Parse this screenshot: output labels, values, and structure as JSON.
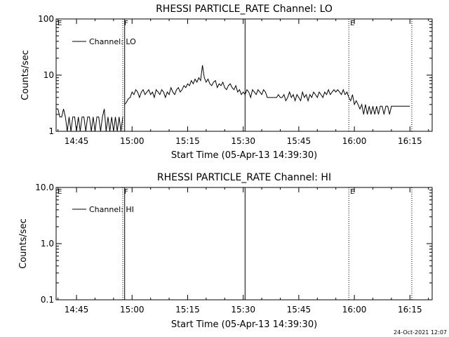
{
  "footer": {
    "timestamp": "24-Oct-2021 12:07"
  },
  "colors": {
    "background": "#ffffff",
    "ink": "#000000"
  },
  "chart_data": [
    {
      "type": "line",
      "title": "RHESSI PARTICLE_RATE Channel: LO",
      "xlabel": "Start Time (05-Apr-13 14:39:30)",
      "ylabel": "Counts/sec",
      "yscale": "log",
      "ylim": [
        1,
        100
      ],
      "ytick_values": [
        1,
        10,
        100
      ],
      "ytick_labels": [
        "1",
        "10",
        "100"
      ],
      "xlim": [
        "14:39:30",
        "16:21:00"
      ],
      "xtick_values": [
        "14:45",
        "15:00",
        "15:15",
        "15:30",
        "15:45",
        "16:00",
        "16:15"
      ],
      "xtick_labels": [
        "14:45",
        "15:00",
        "15:15",
        "15:30",
        "15:45",
        "16:00",
        "16:15"
      ],
      "legend": {
        "position": "top-left",
        "entries": [
          "Channel: LO"
        ]
      },
      "markers": [
        {
          "time": "14:39:30",
          "label": "E",
          "style": "dotted"
        },
        {
          "time": "14:57:30",
          "label": "F",
          "style": "dotted"
        },
        {
          "time": "14:58:00",
          "label": "",
          "style": "solid"
        },
        {
          "time": "15:30:30",
          "label": "",
          "style": "solid"
        },
        {
          "time": "15:58:30",
          "label": "E",
          "style": "dotted"
        },
        {
          "time": "16:15:30",
          "label": "",
          "style": "dotted"
        }
      ],
      "series": [
        {
          "name": "Channel: LO",
          "segments": [
            [
              [
                "14:39:30",
                2.5
              ],
              [
                "14:40:00",
                2.5
              ],
              [
                "14:40:30",
                1.8
              ],
              [
                "14:41:00",
                1.8
              ],
              [
                "14:41:30",
                2.5
              ],
              [
                "14:42:00",
                1.8
              ],
              [
                "14:42:30",
                1.0
              ],
              [
                "14:43:00",
                1.8
              ],
              [
                "14:43:30",
                1.0
              ],
              [
                "14:44:00",
                1.8
              ],
              [
                "14:44:30",
                1.8
              ],
              [
                "14:45:00",
                1.0
              ],
              [
                "14:45:30",
                1.8
              ],
              [
                "14:46:00",
                1.0
              ],
              [
                "14:46:30",
                1.8
              ],
              [
                "14:47:00",
                1.8
              ],
              [
                "14:47:30",
                1.0
              ],
              [
                "14:48:00",
                1.8
              ],
              [
                "14:48:30",
                1.8
              ],
              [
                "14:49:00",
                1.0
              ],
              [
                "14:49:30",
                1.8
              ],
              [
                "14:50:00",
                1.0
              ],
              [
                "14:50:30",
                1.8
              ],
              [
                "14:51:00",
                1.8
              ],
              [
                "14:51:30",
                1.0
              ],
              [
                "14:52:00",
                1.8
              ],
              [
                "14:52:30",
                2.5
              ],
              [
                "14:53:00",
                1.0
              ],
              [
                "14:53:30",
                1.8
              ],
              [
                "14:54:00",
                1.0
              ],
              [
                "14:54:30",
                1.8
              ],
              [
                "14:55:00",
                1.0
              ],
              [
                "14:55:30",
                1.8
              ],
              [
                "14:56:00",
                1.0
              ],
              [
                "14:56:30",
                1.8
              ],
              [
                "14:57:00",
                1.0
              ],
              [
                "14:57:30",
                1.8
              ]
            ],
            [
              [
                "14:58:00",
                3.0
              ],
              [
                "14:58:30",
                3.3
              ],
              [
                "14:59:00",
                3.8
              ],
              [
                "14:59:30",
                4.0
              ],
              [
                "15:00:00",
                5.0
              ],
              [
                "15:00:30",
                4.5
              ],
              [
                "15:01:00",
                5.5
              ],
              [
                "15:01:30",
                5.0
              ],
              [
                "15:02:00",
                4.0
              ],
              [
                "15:02:30",
                5.0
              ],
              [
                "15:03:00",
                5.5
              ],
              [
                "15:03:30",
                4.5
              ],
              [
                "15:04:00",
                5.0
              ],
              [
                "15:04:30",
                5.5
              ],
              [
                "15:05:00",
                4.5
              ],
              [
                "15:05:30",
                5.0
              ],
              [
                "15:06:00",
                4.0
              ],
              [
                "15:06:30",
                5.5
              ],
              [
                "15:07:00",
                5.0
              ],
              [
                "15:07:30",
                4.5
              ],
              [
                "15:08:00",
                5.5
              ],
              [
                "15:08:30",
                5.0
              ],
              [
                "15:09:00",
                4.0
              ],
              [
                "15:09:30",
                5.0
              ],
              [
                "15:10:00",
                4.5
              ],
              [
                "15:10:30",
                6.0
              ],
              [
                "15:11:00",
                5.0
              ],
              [
                "15:11:30",
                4.5
              ],
              [
                "15:12:00",
                5.5
              ],
              [
                "15:12:30",
                6.0
              ],
              [
                "15:13:00",
                5.0
              ],
              [
                "15:13:30",
                5.5
              ],
              [
                "15:14:00",
                6.5
              ],
              [
                "15:14:30",
                6.0
              ],
              [
                "15:15:00",
                7.0
              ],
              [
                "15:15:30",
                6.5
              ],
              [
                "15:16:00",
                8.0
              ],
              [
                "15:16:30",
                7.0
              ],
              [
                "15:17:00",
                8.5
              ],
              [
                "15:17:30",
                7.5
              ],
              [
                "15:18:00",
                9.0
              ],
              [
                "15:18:30",
                8.0
              ],
              [
                "15:19:00",
                15.0
              ],
              [
                "15:19:30",
                9.0
              ],
              [
                "15:20:00",
                7.5
              ],
              [
                "15:20:30",
                8.5
              ],
              [
                "15:21:00",
                7.0
              ],
              [
                "15:21:30",
                6.5
              ],
              [
                "15:22:00",
                7.5
              ],
              [
                "15:22:30",
                8.0
              ],
              [
                "15:23:00",
                6.0
              ],
              [
                "15:23:30",
                7.0
              ],
              [
                "15:24:00",
                6.5
              ],
              [
                "15:24:30",
                7.5
              ],
              [
                "15:25:00",
                6.0
              ],
              [
                "15:25:30",
                5.5
              ],
              [
                "15:26:00",
                6.5
              ],
              [
                "15:26:30",
                7.0
              ],
              [
                "15:27:00",
                6.0
              ],
              [
                "15:27:30",
                5.5
              ],
              [
                "15:28:00",
                6.5
              ],
              [
                "15:28:30",
                5.0
              ],
              [
                "15:29:00",
                5.5
              ],
              [
                "15:29:30",
                4.5
              ],
              [
                "15:30:00",
                5.0
              ],
              [
                "15:30:30",
                4.5
              ],
              [
                "15:31:00",
                5.5
              ],
              [
                "15:31:30",
                5.0
              ],
              [
                "15:32:00",
                4.0
              ],
              [
                "15:32:30",
                5.5
              ],
              [
                "15:33:00",
                5.0
              ],
              [
                "15:33:30",
                4.5
              ],
              [
                "15:34:00",
                5.5
              ],
              [
                "15:34:30",
                5.0
              ],
              [
                "15:35:00",
                4.5
              ],
              [
                "15:35:30",
                5.5
              ],
              [
                "15:36:00",
                5.0
              ],
              [
                "15:36:30",
                4.0
              ],
              [
                "15:37:00",
                4.0
              ],
              [
                "15:37:30",
                4.0
              ],
              [
                "15:38:00",
                4.0
              ],
              [
                "15:38:30",
                4.0
              ],
              [
                "15:39:00",
                4.0
              ],
              [
                "15:39:30",
                4.5
              ],
              [
                "15:40:00",
                4.0
              ],
              [
                "15:40:30",
                4.0
              ],
              [
                "15:41:00",
                4.5
              ],
              [
                "15:41:30",
                3.5
              ],
              [
                "15:42:00",
                4.0
              ],
              [
                "15:42:30",
                5.0
              ],
              [
                "15:43:00",
                4.0
              ],
              [
                "15:43:30",
                4.5
              ],
              [
                "15:44:00",
                3.5
              ],
              [
                "15:44:30",
                4.5
              ],
              [
                "15:45:00",
                4.0
              ],
              [
                "15:45:30",
                3.5
              ],
              [
                "15:46:00",
                5.0
              ],
              [
                "15:46:30",
                4.0
              ],
              [
                "15:47:00",
                4.5
              ],
              [
                "15:47:30",
                3.5
              ],
              [
                "15:48:00",
                4.5
              ],
              [
                "15:48:30",
                4.0
              ],
              [
                "15:49:00",
                5.0
              ],
              [
                "15:49:30",
                4.5
              ],
              [
                "15:50:00",
                4.0
              ],
              [
                "15:50:30",
                5.0
              ],
              [
                "15:51:00",
                4.5
              ],
              [
                "15:51:30",
                4.0
              ],
              [
                "15:52:00",
                5.0
              ],
              [
                "15:52:30",
                4.5
              ],
              [
                "15:53:00",
                5.5
              ],
              [
                "15:53:30",
                4.5
              ],
              [
                "15:54:00",
                5.0
              ],
              [
                "15:54:30",
                5.5
              ],
              [
                "15:55:00",
                5.0
              ],
              [
                "15:55:30",
                5.5
              ],
              [
                "15:56:00",
                5.0
              ],
              [
                "15:56:30",
                4.5
              ],
              [
                "15:57:00",
                5.5
              ],
              [
                "15:57:30",
                4.5
              ],
              [
                "15:58:00",
                5.0
              ],
              [
                "15:58:30",
                4.0
              ],
              [
                "15:59:00",
                3.5
              ],
              [
                "15:59:30",
                4.5
              ],
              [
                "16:00:00",
                3.0
              ],
              [
                "16:00:30",
                3.5
              ],
              [
                "16:01:00",
                3.0
              ],
              [
                "16:01:30",
                2.5
              ],
              [
                "16:02:00",
                3.0
              ],
              [
                "16:02:30",
                2.0
              ],
              [
                "16:03:00",
                3.0
              ],
              [
                "16:03:30",
                2.0
              ],
              [
                "16:04:00",
                2.8
              ],
              [
                "16:04:30",
                2.0
              ],
              [
                "16:05:00",
                2.8
              ],
              [
                "16:05:30",
                2.0
              ],
              [
                "16:06:00",
                2.8
              ],
              [
                "16:06:30",
                2.0
              ],
              [
                "16:07:00",
                2.8
              ],
              [
                "16:07:30",
                2.8
              ],
              [
                "16:08:00",
                2.0
              ],
              [
                "16:08:30",
                2.8
              ],
              [
                "16:09:00",
                2.8
              ],
              [
                "16:09:30",
                2.0
              ],
              [
                "16:10:00",
                2.8
              ],
              [
                "16:10:30",
                2.8
              ],
              [
                "16:11:00",
                2.8
              ],
              [
                "16:11:30",
                2.8
              ],
              [
                "16:12:00",
                2.8
              ],
              [
                "16:12:30",
                2.8
              ],
              [
                "16:13:00",
                2.8
              ],
              [
                "16:13:30",
                2.8
              ],
              [
                "16:14:00",
                2.8
              ],
              [
                "16:14:30",
                2.8
              ],
              [
                "16:15:00",
                2.8
              ]
            ]
          ]
        }
      ]
    },
    {
      "type": "line",
      "title": "RHESSI PARTICLE_RATE Channel: HI",
      "xlabel": "Start Time (05-Apr-13 14:39:30)",
      "ylabel": "Counts/sec",
      "yscale": "log",
      "ylim": [
        0.1,
        10
      ],
      "ytick_values": [
        0.1,
        1,
        10
      ],
      "ytick_labels": [
        "0.1",
        "1.0",
        "10.0"
      ],
      "xlim": [
        "14:39:30",
        "16:21:00"
      ],
      "xtick_values": [
        "14:45",
        "15:00",
        "15:15",
        "15:30",
        "15:45",
        "16:00",
        "16:15"
      ],
      "xtick_labels": [
        "14:45",
        "15:00",
        "15:15",
        "15:30",
        "15:45",
        "16:00",
        "16:15"
      ],
      "legend": {
        "position": "top-left",
        "entries": [
          "Channel: HI"
        ]
      },
      "markers": [
        {
          "time": "14:39:30",
          "label": "E",
          "style": "dotted"
        },
        {
          "time": "14:57:30",
          "label": "F",
          "style": "dotted"
        },
        {
          "time": "14:58:00",
          "label": "",
          "style": "solid"
        },
        {
          "time": "15:30:30",
          "label": "",
          "style": "solid"
        },
        {
          "time": "15:58:30",
          "label": "E",
          "style": "dotted"
        },
        {
          "time": "16:15:30",
          "label": "",
          "style": "dotted"
        }
      ],
      "series": [
        {
          "name": "Channel: HI",
          "segments": []
        }
      ]
    }
  ]
}
